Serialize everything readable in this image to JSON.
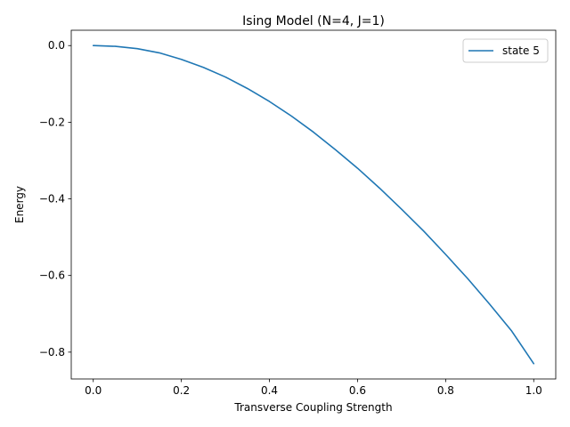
{
  "chart_data": {
    "type": "line",
    "title": "Ising Model (N=4, J=1)",
    "xlabel": "Transverse Coupling Strength",
    "ylabel": "Energy",
    "xlim": [
      -0.05,
      1.05
    ],
    "ylim": [
      -0.87,
      0.04
    ],
    "xticks": [
      0.0,
      0.2,
      0.4,
      0.6,
      0.8,
      1.0
    ],
    "xtick_labels": [
      "0.0",
      "0.2",
      "0.4",
      "0.6",
      "0.8",
      "1.0"
    ],
    "yticks": [
      0.0,
      -0.2,
      -0.4,
      -0.6,
      -0.8
    ],
    "ytick_labels": [
      "0.0",
      "−0.2",
      "−0.4",
      "−0.6",
      "−0.8"
    ],
    "grid": false,
    "legend_position": "top-right",
    "series": [
      {
        "name": "state 5",
        "color": "#1f77b4",
        "x": [
          0.0,
          0.05,
          0.1,
          0.15,
          0.2,
          0.25,
          0.3,
          0.35,
          0.4,
          0.45,
          0.5,
          0.55,
          0.6,
          0.65,
          0.7,
          0.75,
          0.8,
          0.85,
          0.9,
          0.95,
          1.0
        ],
        "y": [
          0.0,
          -0.002,
          -0.008,
          -0.019,
          -0.036,
          -0.057,
          -0.082,
          -0.112,
          -0.146,
          -0.184,
          -0.226,
          -0.272,
          -0.32,
          -0.372,
          -0.427,
          -0.484,
          -0.545,
          -0.608,
          -0.675,
          -0.745,
          -0.83
        ]
      }
    ]
  }
}
